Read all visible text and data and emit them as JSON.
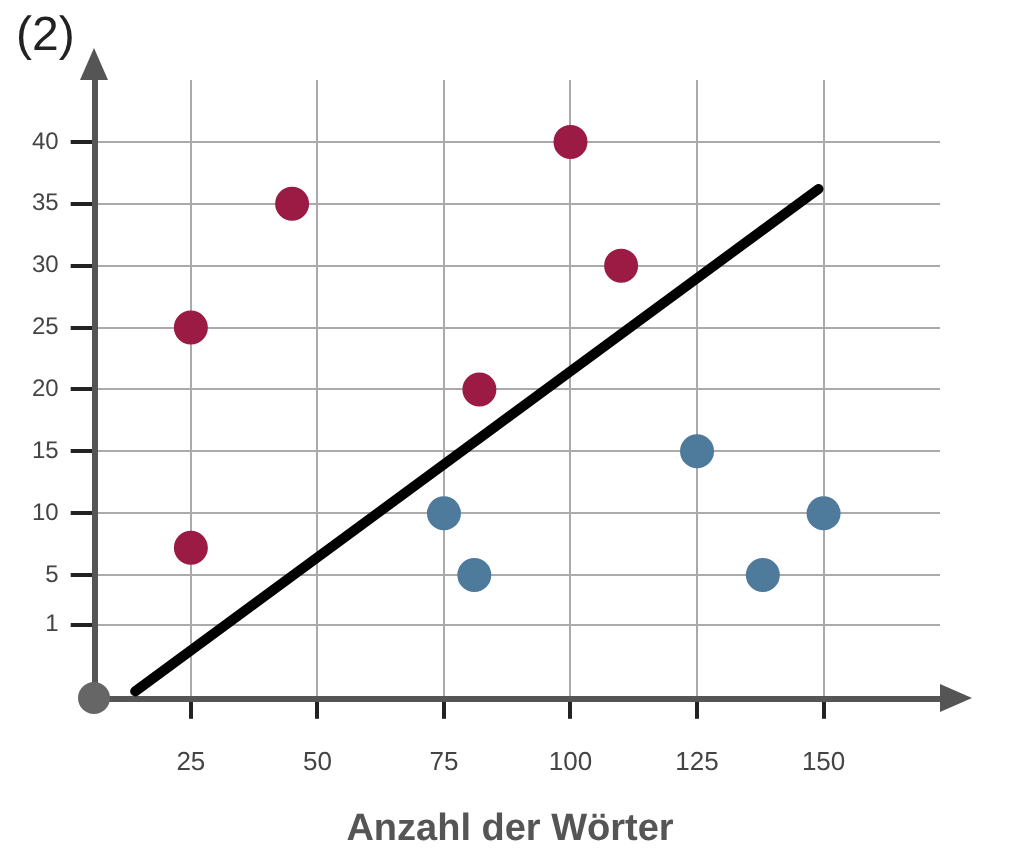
{
  "chart_data": {
    "type": "scatter",
    "title": "(2)",
    "xlabel": "Anzahl der Wörter",
    "xlim": [
      6,
      173
    ],
    "ylim": [
      -5,
      45
    ],
    "xticks": [
      25,
      50,
      75,
      100,
      125,
      150
    ],
    "yticks": [
      1,
      5,
      10,
      15,
      20,
      25,
      30,
      35,
      40
    ],
    "grid": true,
    "legend": false,
    "marker": "circle",
    "series": [
      {
        "color": "#9b1b45",
        "x": [
          25,
          25,
          45,
          100,
          110,
          82
        ],
        "values": [
          25,
          7.2,
          35,
          40,
          30,
          20
        ]
      },
      {
        "color": "#4e7a9c",
        "x": [
          75,
          81,
          125,
          138,
          150
        ],
        "values": [
          10,
          5,
          15,
          5,
          10
        ]
      },
      {
        "type": "line",
        "marker": "none",
        "color": "#000000",
        "line_style": "solid",
        "x": [
          14,
          149
        ],
        "values": [
          -4.4,
          36.2
        ]
      }
    ]
  }
}
